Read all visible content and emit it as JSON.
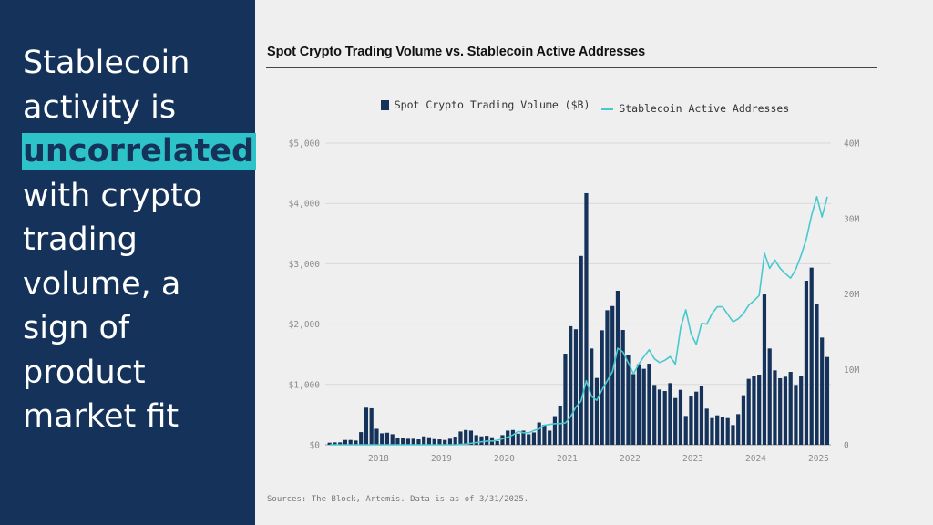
{
  "headline": {
    "before": "Stablecoin activity is",
    "highlight": "uncorrelated",
    "after": "with crypto trading volume, a sign of product market fit"
  },
  "chart_data": {
    "type": "bar+line",
    "title": "Spot Crypto Trading Volume vs. Stablecoin Active Addresses",
    "legend_position": "top",
    "grid": true,
    "x": [
      "2017-04",
      "2017-05",
      "2017-06",
      "2017-07",
      "2017-08",
      "2017-09",
      "2017-10",
      "2017-11",
      "2017-12",
      "2018-01",
      "2018-02",
      "2018-03",
      "2018-04",
      "2018-05",
      "2018-06",
      "2018-07",
      "2018-08",
      "2018-09",
      "2018-10",
      "2018-11",
      "2018-12",
      "2019-01",
      "2019-02",
      "2019-03",
      "2019-04",
      "2019-05",
      "2019-06",
      "2019-07",
      "2019-08",
      "2019-09",
      "2019-10",
      "2019-11",
      "2019-12",
      "2020-01",
      "2020-02",
      "2020-03",
      "2020-04",
      "2020-05",
      "2020-06",
      "2020-07",
      "2020-08",
      "2020-09",
      "2020-10",
      "2020-11",
      "2020-12",
      "2021-01",
      "2021-02",
      "2021-03",
      "2021-04",
      "2021-05",
      "2021-06",
      "2021-07",
      "2021-08",
      "2021-09",
      "2021-10",
      "2021-11",
      "2021-12",
      "2022-01",
      "2022-02",
      "2022-03",
      "2022-04",
      "2022-05",
      "2022-06",
      "2022-07",
      "2022-08",
      "2022-09",
      "2022-10",
      "2022-11",
      "2022-12",
      "2023-01",
      "2023-02",
      "2023-03",
      "2023-04",
      "2023-05",
      "2023-06",
      "2023-07",
      "2023-08",
      "2023-09",
      "2023-10",
      "2023-11",
      "2023-12",
      "2024-01",
      "2024-02",
      "2024-03",
      "2024-04",
      "2024-05",
      "2024-06",
      "2024-07",
      "2024-08",
      "2024-09",
      "2024-10",
      "2024-11",
      "2024-12",
      "2025-01",
      "2025-02",
      "2025-03"
    ],
    "x_ticks": [
      {
        "label": "2018",
        "at": "2018-01"
      },
      {
        "label": "2019",
        "at": "2019-01"
      },
      {
        "label": "2020",
        "at": "2020-01"
      },
      {
        "label": "2021",
        "at": "2021-01"
      },
      {
        "label": "2022",
        "at": "2022-01"
      },
      {
        "label": "2023",
        "at": "2023-01"
      },
      {
        "label": "2024",
        "at": "2024-01"
      },
      {
        "label": "2025",
        "at": "2025-01"
      }
    ],
    "y_left": {
      "range": [
        0,
        5000
      ],
      "ticks": [
        {
          "v": 0,
          "label": "$0"
        },
        {
          "v": 1000,
          "label": "$1,000"
        },
        {
          "v": 2000,
          "label": "$2,000"
        },
        {
          "v": 3000,
          "label": "$3,000"
        },
        {
          "v": 4000,
          "label": "$4,000"
        },
        {
          "v": 5000,
          "label": "$5,000"
        }
      ]
    },
    "y_right": {
      "range": [
        0,
        40
      ],
      "ticks": [
        {
          "v": 0,
          "label": "0"
        },
        {
          "v": 10,
          "label": "10M"
        },
        {
          "v": 20,
          "label": "20M"
        },
        {
          "v": 30,
          "label": "30M"
        },
        {
          "v": 40,
          "label": "40M"
        }
      ]
    },
    "series": [
      {
        "name": "Spot Crypto Trading Volume ($B)",
        "type": "bar",
        "axis": "left",
        "color": "#15325a",
        "values": [
          35,
          40,
          40,
          80,
          80,
          70,
          210,
          615,
          605,
          265,
          190,
          200,
          175,
          110,
          110,
          100,
          100,
          90,
          140,
          125,
          95,
          90,
          80,
          100,
          135,
          220,
          245,
          235,
          160,
          140,
          150,
          125,
          60,
          160,
          235,
          245,
          185,
          235,
          175,
          205,
          370,
          330,
          235,
          475,
          650,
          1510,
          1965,
          1915,
          3130,
          4170,
          1596,
          1108,
          1898,
          2230,
          2300,
          2553,
          1903,
          1485,
          1173,
          1334,
          1259,
          1344,
          992,
          916,
          891,
          1022,
          775,
          911,
          478,
          800,
          881,
          972,
          599,
          443,
          488,
          468,
          443,
          327,
          508,
          821,
          1093,
          1143,
          1163,
          2492,
          1596,
          1234,
          1103,
          1128,
          1208,
          992,
          1143,
          2719,
          2936,
          2326,
          1777,
          1455
        ]
      },
      {
        "name": "Stablecoin Active Addresses",
        "type": "line",
        "axis": "right",
        "unit": "M",
        "color": "#48c9cf",
        "values": [
          0,
          0,
          0,
          0,
          0,
          0,
          0,
          0,
          0,
          0,
          0,
          0,
          0,
          0,
          0,
          0,
          0,
          0,
          0,
          0,
          0,
          0,
          0,
          0,
          0,
          0.05,
          0.1,
          0.2,
          0.3,
          0.4,
          0.5,
          0.5,
          0.6,
          0.8,
          1.0,
          1.3,
          1.8,
          1.6,
          1.6,
          1.9,
          2.1,
          2.6,
          2.7,
          2.8,
          2.8,
          2.9,
          3.7,
          5.0,
          5.8,
          8.5,
          6.4,
          5.9,
          7.3,
          8.5,
          9.7,
          12.8,
          12.3,
          10.9,
          9.4,
          10.7,
          11.7,
          12.6,
          11.4,
          10.9,
          11.2,
          11.7,
          10.7,
          15.5,
          17.9,
          14.7,
          13.3,
          16.1,
          16.0,
          17.4,
          18.3,
          18.3,
          17.3,
          16.3,
          16.7,
          17.4,
          18.5,
          19.1,
          19.8,
          25.4,
          23.4,
          24.5,
          23.4,
          22.7,
          22.1,
          23.3,
          25.1,
          27.3,
          30.4,
          32.9,
          30.2,
          32.9
        ]
      }
    ]
  },
  "source": "Sources: The Block, Artemis. Data is as of 3/31/2025."
}
